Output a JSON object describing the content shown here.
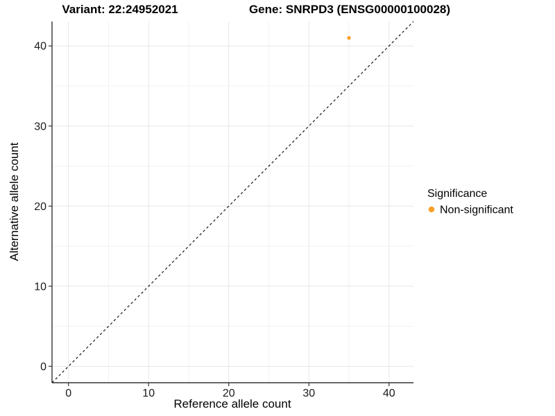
{
  "header": {
    "variant_title": "Variant: 22:24952021",
    "gene_title": "Gene: SNRPD3 (ENSG00000100028)"
  },
  "chart_data": {
    "type": "scatter",
    "xlabel": "Reference allele count",
    "ylabel": "Alternative allele count",
    "xlim": [
      -2.05,
      43.05
    ],
    "ylim": [
      -2.05,
      43.05
    ],
    "xticks": [
      0,
      10,
      20,
      30,
      40
    ],
    "yticks": [
      0,
      10,
      20,
      30,
      40
    ],
    "xminor": [
      5,
      15,
      25,
      35
    ],
    "yminor": [
      5,
      15,
      25,
      35
    ],
    "grid": "major+minor, light gray on white",
    "points": [
      {
        "x": 35,
        "y": 41,
        "series": "Non-significant",
        "color": "#F8A028"
      }
    ],
    "identity_line": {
      "style": "dashed",
      "color": "#000000",
      "from": -2.05,
      "to": 43.05
    },
    "legend": {
      "title": "Significance",
      "position": "right-middle",
      "items": [
        {
          "label": "Non-significant",
          "color": "#F8A028"
        }
      ]
    }
  },
  "colors": {
    "background": "#FFFFFF",
    "grid_major": "#E6E6E6",
    "grid_minor": "#F2F2F2",
    "axis_line": "#333333",
    "tick_mark": "#333333",
    "point_orange": "#F8A028",
    "dashed_line": "#000000"
  }
}
